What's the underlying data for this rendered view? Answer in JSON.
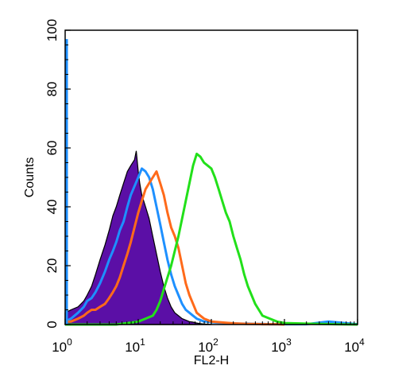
{
  "chart_data": {
    "type": "area",
    "xlabel": "FL2-H",
    "ylabel": "Counts",
    "x_scale": "log",
    "xlim": [
      1,
      10000
    ],
    "ylim": [
      0,
      100
    ],
    "x_ticks": [
      {
        "base": "10",
        "exp": "0",
        "value": 1
      },
      {
        "base": "10",
        "exp": "1",
        "value": 10
      },
      {
        "base": "10",
        "exp": "2",
        "value": 100
      },
      {
        "base": "10",
        "exp": "3",
        "value": 1000
      },
      {
        "base": "10",
        "exp": "4",
        "value": 10000
      }
    ],
    "y_ticks": [
      "0",
      "20",
      "40",
      "60",
      "80",
      "100"
    ],
    "grid": false,
    "legend": "none",
    "series": [
      {
        "color": "#5b0fa6",
        "style": "filled",
        "x": [
          1.0,
          1.2,
          1.5,
          1.8,
          2.0,
          2.3,
          2.6,
          3.0,
          3.5,
          4.0,
          4.5,
          5.0,
          5.6,
          6.3,
          7.1,
          7.9,
          8.9,
          9.4,
          10.0,
          10.5,
          11.2,
          12.6,
          14.1,
          15.8,
          17.8,
          20.0,
          22.4,
          25.1,
          28.2,
          31.6,
          35.5,
          39.8,
          44.7,
          50.1,
          56.2,
          63.1,
          70.8,
          79.4,
          89.1,
          100
        ],
        "y": [
          4,
          5,
          6,
          8,
          10,
          13,
          17,
          22,
          27,
          32,
          37,
          40,
          44,
          48,
          52,
          54,
          56,
          59,
          52,
          48,
          44,
          40,
          36,
          30,
          24,
          18,
          13,
          9,
          6,
          4,
          3,
          2,
          1.5,
          1,
          0.8,
          0.5,
          0.3,
          0.2,
          0.1,
          0
        ]
      },
      {
        "color": "#1e90ff",
        "style": "outline",
        "x": [
          1.0,
          1.2,
          1.5,
          1.8,
          2.0,
          2.3,
          2.6,
          3.0,
          3.5,
          4.0,
          4.5,
          5.0,
          5.6,
          6.3,
          7.1,
          7.9,
          8.9,
          10.0,
          11.2,
          12.6,
          14.1,
          15.8,
          17.8,
          20.0,
          22.4,
          25.1,
          28.2,
          31.6,
          35.5,
          39.8,
          44.7,
          50.1,
          56.2,
          63.1,
          70.8,
          79.4,
          89.1,
          100,
          126,
          158,
          200,
          251,
          316,
          398,
          501,
          631,
          794,
          1000,
          2000,
          4000,
          10000
        ],
        "y": [
          1,
          2,
          4,
          6,
          8,
          9,
          11,
          14,
          18,
          22,
          25,
          28,
          32,
          35,
          40,
          44,
          47,
          50,
          53,
          52,
          50,
          46,
          40,
          34,
          28,
          22,
          17,
          13,
          10,
          7,
          5,
          4,
          3,
          2,
          1.5,
          1,
          1,
          0.8,
          0.6,
          0.5,
          0.4,
          0.3,
          0.3,
          0.2,
          0.2,
          0.1,
          0.1,
          0.1,
          0.1,
          1,
          0.1
        ]
      },
      {
        "color": "#ff6a1a",
        "style": "outline",
        "x": [
          1.0,
          1.2,
          1.5,
          1.8,
          2.0,
          2.3,
          2.6,
          3.0,
          3.5,
          4.0,
          4.5,
          5.0,
          5.6,
          6.3,
          7.1,
          7.9,
          8.9,
          10.0,
          11.2,
          12.6,
          14.1,
          15.8,
          17.8,
          20.0,
          22.4,
          25.1,
          28.2,
          31.6,
          35.5,
          39.8,
          44.7,
          50.1,
          56.2,
          63.1,
          70.8,
          79.4,
          89.1,
          100,
          126,
          158,
          200,
          251,
          316,
          398,
          501,
          631,
          794,
          1000
        ],
        "y": [
          1,
          1,
          2,
          3,
          4,
          5,
          5,
          6,
          7,
          9,
          11,
          13,
          16,
          20,
          24,
          28,
          33,
          38,
          42,
          46,
          48,
          50,
          52,
          48,
          44,
          38,
          33,
          30,
          26,
          20,
          14,
          10,
          7,
          4,
          3,
          2,
          1.5,
          1,
          0.8,
          0.6,
          0.4,
          0.3,
          0.2,
          0.2,
          0.1,
          0.1,
          0.1,
          0
        ]
      },
      {
        "color": "#22e01a",
        "style": "outline",
        "x": [
          1.0,
          2.0,
          5.0,
          10.0,
          12.6,
          15.8,
          17.8,
          20.0,
          22.4,
          25.1,
          28.2,
          31.6,
          35.5,
          39.8,
          44.7,
          50.1,
          56.2,
          63.1,
          70.8,
          79.4,
          89.1,
          100,
          112,
          126,
          141,
          158,
          178,
          200,
          224,
          251,
          282,
          316,
          355,
          398,
          447,
          501,
          631,
          794,
          1000,
          2000,
          5000,
          10000
        ],
        "y": [
          0,
          0,
          0,
          1,
          2,
          3,
          5,
          8,
          12,
          16,
          20,
          25,
          30,
          36,
          42,
          48,
          54,
          58,
          57,
          55,
          54,
          53,
          50,
          46,
          42,
          38,
          35,
          30,
          26,
          22,
          17,
          13,
          10,
          7,
          5,
          3,
          2,
          1,
          0.5,
          0.3,
          0.1,
          0
        ]
      },
      {
        "color": "#1e90ff",
        "style": "spike",
        "x": [
          1,
          1,
          1.01
        ],
        "y": [
          0,
          97,
          50
        ]
      }
    ]
  }
}
